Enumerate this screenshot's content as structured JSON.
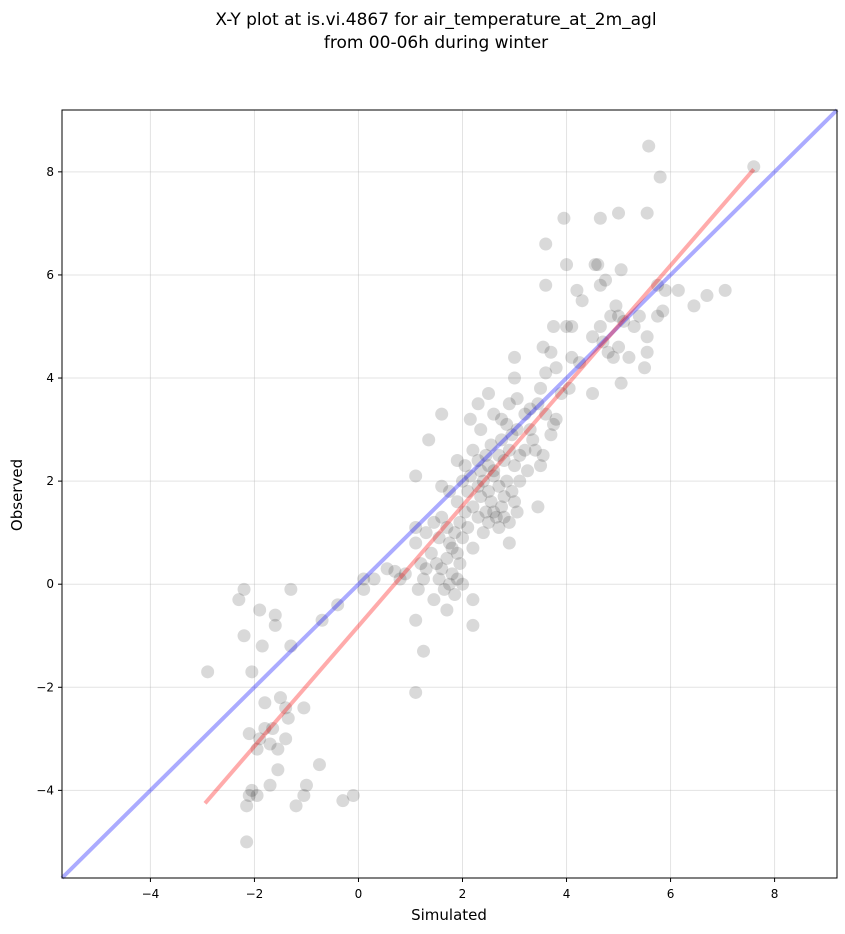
{
  "chart_data": {
    "type": "scatter",
    "title_line1": "X-Y plot at is.vi.4867 for air_temperature_at_2m_agl",
    "title_line2": "from 00-06h during winter",
    "xlabel": "Simulated",
    "ylabel": "Observed",
    "xlim": [
      -5.7,
      9.2
    ],
    "ylim": [
      -5.7,
      9.2
    ],
    "xticks": [
      -4,
      -2,
      0,
      2,
      4,
      6,
      8
    ],
    "yticks": [
      -4,
      -2,
      0,
      2,
      4,
      6,
      8
    ],
    "xtick_labels": [
      "−4",
      "−2",
      "0",
      "2",
      "4",
      "6",
      "8"
    ],
    "ytick_labels": [
      "−4",
      "−2",
      "0",
      "2",
      "4",
      "6",
      "8"
    ],
    "grid": true,
    "point_color": "#000000",
    "identity_line_color": "#0000ff",
    "fit_line_color": "#ff0000",
    "fit_line": {
      "x": [
        -2.95,
        7.6
      ],
      "y": [
        -4.25,
        8.05
      ]
    },
    "points": [
      [
        5.58,
        8.5
      ],
      [
        7.6,
        8.1
      ],
      [
        5.8,
        7.9
      ],
      [
        3.95,
        7.1
      ],
      [
        4.65,
        7.1
      ],
      [
        5.0,
        7.2
      ],
      [
        5.55,
        7.2
      ],
      [
        3.6,
        6.6
      ],
      [
        4.0,
        6.2
      ],
      [
        4.55,
        6.2
      ],
      [
        4.6,
        6.2
      ],
      [
        5.05,
        6.1
      ],
      [
        3.6,
        5.8
      ],
      [
        4.2,
        5.7
      ],
      [
        4.3,
        5.5
      ],
      [
        4.65,
        5.8
      ],
      [
        4.75,
        5.9
      ],
      [
        5.75,
        5.8
      ],
      [
        5.9,
        5.7
      ],
      [
        6.15,
        5.7
      ],
      [
        6.45,
        5.4
      ],
      [
        6.7,
        5.6
      ],
      [
        7.05,
        5.7
      ],
      [
        4.0,
        5.0
      ],
      [
        4.1,
        5.0
      ],
      [
        4.5,
        4.8
      ],
      [
        4.65,
        5.0
      ],
      [
        4.7,
        4.7
      ],
      [
        4.85,
        5.2
      ],
      [
        4.95,
        5.4
      ],
      [
        5.0,
        5.2
      ],
      [
        5.1,
        5.1
      ],
      [
        5.3,
        5.0
      ],
      [
        5.4,
        5.2
      ],
      [
        5.55,
        4.8
      ],
      [
        5.75,
        5.2
      ],
      [
        5.85,
        5.3
      ],
      [
        3.0,
        4.4
      ],
      [
        3.55,
        4.6
      ],
      [
        3.7,
        4.5
      ],
      [
        3.75,
        5.0
      ],
      [
        4.1,
        4.4
      ],
      [
        4.25,
        4.3
      ],
      [
        4.8,
        4.5
      ],
      [
        4.9,
        4.4
      ],
      [
        5.0,
        4.6
      ],
      [
        5.2,
        4.4
      ],
      [
        5.55,
        4.5
      ],
      [
        5.5,
        4.2
      ],
      [
        5.05,
        3.9
      ],
      [
        3.0,
        4.0
      ],
      [
        3.5,
        3.8
      ],
      [
        3.6,
        4.1
      ],
      [
        3.9,
        3.7
      ],
      [
        4.05,
        3.8
      ],
      [
        4.5,
        3.7
      ],
      [
        3.8,
        4.2
      ],
      [
        2.5,
        3.7
      ],
      [
        2.9,
        3.5
      ],
      [
        3.05,
        3.6
      ],
      [
        3.3,
        3.4
      ],
      [
        3.45,
        3.5
      ],
      [
        3.6,
        3.3
      ],
      [
        3.75,
        3.1
      ],
      [
        3.8,
        3.2
      ],
      [
        3.7,
        2.9
      ],
      [
        3.55,
        2.5
      ],
      [
        3.5,
        2.3
      ],
      [
        3.45,
        1.5
      ],
      [
        1.6,
        3.3
      ],
      [
        2.15,
        3.2
      ],
      [
        2.3,
        3.5
      ],
      [
        2.35,
        3.0
      ],
      [
        2.6,
        3.3
      ],
      [
        2.75,
        3.2
      ],
      [
        2.85,
        3.1
      ],
      [
        3.05,
        3.0
      ],
      [
        3.2,
        3.3
      ],
      [
        3.3,
        3.0
      ],
      [
        3.35,
        2.8
      ],
      [
        3.4,
        2.6
      ],
      [
        1.35,
        2.8
      ],
      [
        1.9,
        2.4
      ],
      [
        2.05,
        2.3
      ],
      [
        2.2,
        2.6
      ],
      [
        2.3,
        2.4
      ],
      [
        2.35,
        2.2
      ],
      [
        2.45,
        2.5
      ],
      [
        2.5,
        2.3
      ],
      [
        2.55,
        2.7
      ],
      [
        2.6,
        2.2
      ],
      [
        2.7,
        2.5
      ],
      [
        2.75,
        2.8
      ],
      [
        2.8,
        2.4
      ],
      [
        2.9,
        2.6
      ],
      [
        2.95,
        2.9
      ],
      [
        3.0,
        2.3
      ],
      [
        3.1,
        2.5
      ],
      [
        3.2,
        2.6
      ],
      [
        3.25,
        2.2
      ],
      [
        3.1,
        2.0
      ],
      [
        1.1,
        2.1
      ],
      [
        1.6,
        1.9
      ],
      [
        1.75,
        1.8
      ],
      [
        1.9,
        1.6
      ],
      [
        2.0,
        2.0
      ],
      [
        2.1,
        1.8
      ],
      [
        2.15,
        2.1
      ],
      [
        2.2,
        1.5
      ],
      [
        2.3,
        1.9
      ],
      [
        2.35,
        1.7
      ],
      [
        2.4,
        2.0
      ],
      [
        2.45,
        1.4
      ],
      [
        2.5,
        1.8
      ],
      [
        2.55,
        1.6
      ],
      [
        2.6,
        2.1
      ],
      [
        2.65,
        1.3
      ],
      [
        2.7,
        1.9
      ],
      [
        2.75,
        1.5
      ],
      [
        2.8,
        1.7
      ],
      [
        2.85,
        2.0
      ],
      [
        2.9,
        1.2
      ],
      [
        2.95,
        1.8
      ],
      [
        3.0,
        1.6
      ],
      [
        3.05,
        1.4
      ],
      [
        1.1,
        1.1
      ],
      [
        1.3,
        1.0
      ],
      [
        1.45,
        1.2
      ],
      [
        1.55,
        0.9
      ],
      [
        1.6,
        1.3
      ],
      [
        1.7,
        1.1
      ],
      [
        1.75,
        0.8
      ],
      [
        1.8,
        0.7
      ],
      [
        1.85,
        1.0
      ],
      [
        1.9,
        0.6
      ],
      [
        1.95,
        1.2
      ],
      [
        2.0,
        0.9
      ],
      [
        2.05,
        1.4
      ],
      [
        2.1,
        1.1
      ],
      [
        2.2,
        0.7
      ],
      [
        2.3,
        1.3
      ],
      [
        2.4,
        1.0
      ],
      [
        2.5,
        1.2
      ],
      [
        2.6,
        1.4
      ],
      [
        2.7,
        1.1
      ],
      [
        2.8,
        1.3
      ],
      [
        2.9,
        0.8
      ],
      [
        1.1,
        0.8
      ],
      [
        1.2,
        0.4
      ],
      [
        1.3,
        0.3
      ],
      [
        1.4,
        0.6
      ],
      [
        1.5,
        0.4
      ],
      [
        1.55,
        0.1
      ],
      [
        1.6,
        0.3
      ],
      [
        1.7,
        0.5
      ],
      [
        1.75,
        0.0
      ],
      [
        1.8,
        0.2
      ],
      [
        1.85,
        -0.2
      ],
      [
        1.9,
        0.1
      ],
      [
        1.95,
        0.4
      ],
      [
        2.0,
        0.0
      ],
      [
        1.65,
        -0.1
      ],
      [
        1.45,
        -0.3
      ],
      [
        1.25,
        0.1
      ],
      [
        1.15,
        -0.1
      ],
      [
        1.7,
        -0.5
      ],
      [
        2.2,
        -0.3
      ],
      [
        2.2,
        -0.8
      ],
      [
        1.1,
        -0.7
      ],
      [
        1.25,
        -1.3
      ],
      [
        1.1,
        -2.1
      ],
      [
        0.55,
        0.3
      ],
      [
        0.7,
        0.25
      ],
      [
        0.8,
        0.1
      ],
      [
        0.9,
        0.2
      ],
      [
        0.3,
        0.1
      ],
      [
        0.1,
        0.1
      ],
      [
        0.1,
        -0.1
      ],
      [
        -0.4,
        -0.4
      ],
      [
        -0.7,
        -0.7
      ],
      [
        -2.9,
        -1.7
      ],
      [
        -2.3,
        -0.3
      ],
      [
        -2.2,
        -0.1
      ],
      [
        -2.2,
        -1.0
      ],
      [
        -1.9,
        -0.5
      ],
      [
        -1.85,
        -1.2
      ],
      [
        -1.6,
        -0.6
      ],
      [
        -1.6,
        -0.8
      ],
      [
        -1.3,
        -0.1
      ],
      [
        -1.3,
        -1.2
      ],
      [
        -2.05,
        -1.7
      ],
      [
        -1.5,
        -2.2
      ],
      [
        -1.4,
        -2.4
      ],
      [
        -1.35,
        -2.6
      ],
      [
        -1.05,
        -2.4
      ],
      [
        -1.8,
        -2.3
      ],
      [
        -1.8,
        -2.8
      ],
      [
        -1.65,
        -2.8
      ],
      [
        -1.7,
        -3.1
      ],
      [
        -1.9,
        -3.0
      ],
      [
        -1.95,
        -3.2
      ],
      [
        -2.1,
        -2.9
      ],
      [
        -1.4,
        -3.0
      ],
      [
        -1.55,
        -3.2
      ],
      [
        -1.55,
        -3.6
      ],
      [
        -1.7,
        -3.9
      ],
      [
        -0.75,
        -3.5
      ],
      [
        -2.05,
        -4.0
      ],
      [
        -1.95,
        -4.1
      ],
      [
        -2.1,
        -4.1
      ],
      [
        -2.15,
        -4.3
      ],
      [
        -1.2,
        -4.3
      ],
      [
        -1.05,
        -4.1
      ],
      [
        -1.0,
        -3.9
      ],
      [
        -0.3,
        -4.2
      ],
      [
        -0.1,
        -4.1
      ],
      [
        -2.15,
        -5.0
      ]
    ]
  }
}
